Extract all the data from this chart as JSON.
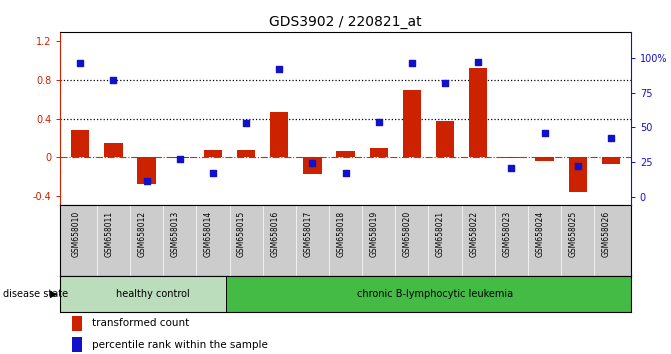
{
  "title": "GDS3902 / 220821_at",
  "samples": [
    "GSM658010",
    "GSM658011",
    "GSM658012",
    "GSM658013",
    "GSM658014",
    "GSM658015",
    "GSM658016",
    "GSM658017",
    "GSM658018",
    "GSM658019",
    "GSM658020",
    "GSM658021",
    "GSM658022",
    "GSM658023",
    "GSM658024",
    "GSM658025",
    "GSM658026"
  ],
  "bar_values": [
    0.28,
    0.15,
    -0.28,
    -0.01,
    0.07,
    0.07,
    0.47,
    -0.17,
    0.06,
    0.09,
    0.7,
    0.38,
    0.92,
    -0.01,
    -0.04,
    -0.36,
    -0.07
  ],
  "dot_values": [
    96,
    84,
    11,
    27,
    17,
    53,
    92,
    24,
    17,
    54,
    96,
    82,
    97,
    21,
    46,
    22,
    42
  ],
  "ylim_left": [
    -0.5,
    1.3
  ],
  "ylim_right": [
    -6.25,
    118.75
  ],
  "yticks_left": [
    -0.4,
    0.0,
    0.4,
    0.8,
    1.2
  ],
  "ytick_labels_left": [
    "-0.4",
    "0",
    "0.4",
    "0.8",
    "1.2"
  ],
  "yticks_right": [
    0,
    25,
    50,
    75,
    100
  ],
  "ytick_labels_right": [
    "0",
    "25",
    "50",
    "75",
    "100%"
  ],
  "hlines": [
    0.8,
    0.4
  ],
  "bar_color": "#cc2200",
  "dot_color": "#1111cc",
  "zero_line_color": "#cc3300",
  "hline_color": "#000000",
  "healthy_label": "healthy control",
  "leukemia_label": "chronic B-lymphocytic leukemia",
  "disease_state_label": "disease state",
  "healthy_count": 5,
  "healthy_color": "#bbddbb",
  "leukemia_color": "#44bb44",
  "legend_bar_label": "transformed count",
  "legend_dot_label": "percentile rank within the sample",
  "bg_color": "#ffffff",
  "axis_color_left": "#cc2200",
  "axis_color_right": "#1111cc",
  "tick_label_area_color": "#cccccc",
  "title_fontsize": 10,
  "bar_width": 0.55
}
